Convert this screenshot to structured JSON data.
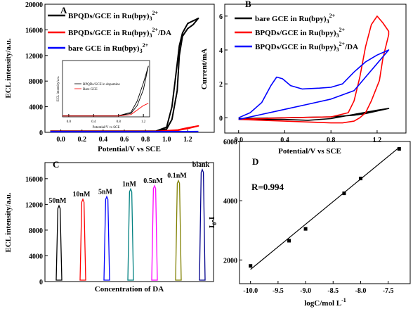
{
  "chart_data": [
    {
      "panel": "A",
      "type": "line",
      "xlabel": "Potential/V vs SCE",
      "ylabel": "ECL intensity/a.u.",
      "xlim": [
        -0.15,
        1.45
      ],
      "ylim": [
        0,
        20000
      ],
      "xticks": [
        "0.0",
        "0.2",
        "0.4",
        "0.6",
        "0.8",
        "1.0",
        "1.2"
      ],
      "xtick_values": [
        0.0,
        0.2,
        0.4,
        0.6,
        0.8,
        1.0,
        1.2
      ],
      "yticks": [
        "0",
        "4000",
        "8000",
        "12000",
        "16000",
        "20000"
      ],
      "ytick_values": [
        0,
        4000,
        8000,
        12000,
        16000,
        20000
      ],
      "legend_position": "top-left",
      "series": [
        {
          "name": "BPQDs/GCE in Ru(bpy)3 2+",
          "color": "#000000",
          "x": [
            -0.1,
            0.5,
            0.9,
            1.0,
            1.05,
            1.08,
            1.12,
            1.15,
            1.2,
            1.3,
            1.3,
            1.25,
            1.2,
            1.15,
            1.12,
            1.1,
            1.05,
            1.0,
            0.9,
            0.5,
            -0.1
          ],
          "y": [
            200,
            200,
            200,
            800,
            4000,
            8000,
            13500,
            15500,
            17000,
            17800,
            17800,
            16800,
            16200,
            15000,
            12000,
            6500,
            2000,
            500,
            200,
            200,
            200
          ]
        },
        {
          "name": "BPQDs/GCE in Ru(bpy)3 2+/DA",
          "color": "#ff0000",
          "x": [
            -0.1,
            0.5,
            0.9,
            1.1,
            1.2,
            1.3,
            1.3,
            1.2,
            1.1,
            0.9,
            0.5,
            -0.1
          ],
          "y": [
            150,
            150,
            150,
            300,
            600,
            1000,
            1000,
            700,
            350,
            150,
            150,
            150
          ]
        },
        {
          "name": "bare GCE in Ru(bpy)3 2+",
          "color": "#0000ff",
          "x": [
            -0.1,
            0.5,
            1.0,
            1.2,
            1.3
          ],
          "y": [
            100,
            100,
            100,
            110,
            120
          ]
        }
      ]
    },
    {
      "panel": "A-inset",
      "type": "line",
      "xlabel": "Potential/V vs SCE",
      "ylabel": "ECL intensity/a.u.",
      "xlim": [
        -0.1,
        1.3
      ],
      "ylim": [
        0,
        1000
      ],
      "xticks": [
        "0.0",
        "0.4",
        "0.8",
        "1.2"
      ],
      "xtick_values": [
        0.0,
        0.4,
        0.8,
        1.2
      ],
      "series": [
        {
          "name": "BPQDs/GCE in dopamine",
          "color": "#000000",
          "x": [
            -0.1,
            0.8,
            1.0,
            1.1,
            1.2,
            1.28,
            1.28,
            1.2,
            1.1,
            1.0,
            0.8,
            -0.1
          ],
          "y": [
            20,
            20,
            60,
            200,
            480,
            900,
            900,
            600,
            280,
            80,
            20,
            20
          ]
        },
        {
          "name": "Bare GCE",
          "color": "#ff0000",
          "x": [
            -0.1,
            0.8,
            1.0,
            1.1,
            1.2,
            1.28
          ],
          "y": [
            15,
            15,
            40,
            120,
            200,
            240
          ]
        }
      ]
    },
    {
      "panel": "B",
      "type": "line",
      "xlabel": "Potential/V vs SCE",
      "ylabel": "Current/mA",
      "xlim": [
        -0.12,
        1.45
      ],
      "ylim": [
        -0.9,
        6.7
      ],
      "xticks": [
        "0.0",
        "0.4",
        "0.8",
        "1.2"
      ],
      "xtick_values": [
        0.0,
        0.4,
        0.8,
        1.2
      ],
      "yticks": [
        "0",
        "2",
        "4",
        "6"
      ],
      "ytick_values": [
        0,
        2,
        4,
        6
      ],
      "legend_position": "top-left",
      "series": [
        {
          "name": "bare GCE in Ru(bpy)3 2+",
          "color": "#000000",
          "x": [
            0.0,
            0.4,
            0.8,
            1.0,
            1.1,
            1.2,
            1.3,
            1.3,
            1.2,
            1.0,
            0.8,
            0.6,
            0.4,
            0.2,
            0.0
          ],
          "y": [
            -0.05,
            0.0,
            0.05,
            0.15,
            0.25,
            0.4,
            0.55,
            0.55,
            0.45,
            0.2,
            -0.05,
            -0.15,
            -0.1,
            -0.1,
            -0.05
          ]
        },
        {
          "name": "BPQDs/GCE in Ru(bpy)3 2+",
          "color": "#ff0000",
          "x": [
            0.0,
            0.4,
            0.8,
            0.95,
            1.0,
            1.05,
            1.1,
            1.15,
            1.2,
            1.25,
            1.3,
            1.3,
            1.25,
            1.22,
            1.15,
            1.1,
            1.05,
            1.0,
            0.9,
            0.8,
            0.4,
            0.0
          ],
          "y": [
            -0.1,
            0.0,
            0.05,
            0.3,
            1.0,
            2.4,
            4.2,
            5.5,
            6.0,
            5.6,
            5.1,
            4.9,
            3.5,
            2.2,
            1.0,
            0.3,
            0.0,
            -0.2,
            -0.3,
            -0.3,
            -0.2,
            -0.1
          ]
        },
        {
          "name": "BPQDs/GCE in Ru(bpy)3 2+/DA",
          "color": "#0000ff",
          "x": [
            0.0,
            0.1,
            0.2,
            0.28,
            0.33,
            0.38,
            0.45,
            0.55,
            0.7,
            0.8,
            0.9,
            1.0,
            1.1,
            1.2,
            1.3,
            1.3,
            1.2,
            1.1,
            1.0,
            0.8,
            0.6,
            0.4,
            0.2,
            0.0
          ],
          "y": [
            0.0,
            0.3,
            0.9,
            1.9,
            2.4,
            2.3,
            1.9,
            1.7,
            1.75,
            1.8,
            2.0,
            2.7,
            3.3,
            3.7,
            4.0,
            4.0,
            3.2,
            2.4,
            1.6,
            1.1,
            0.8,
            0.5,
            0.2,
            -0.1
          ]
        }
      ]
    },
    {
      "panel": "C",
      "type": "line",
      "xlabel": "Concentration of DA",
      "ylabel": "ECL intensity/a.u.",
      "ylim": [
        0,
        18500
      ],
      "yticks": [
        "0",
        "4000",
        "8000",
        "12000",
        "16000"
      ],
      "ytick_values": [
        0,
        4000,
        8000,
        12000,
        16000
      ],
      "peaks": [
        {
          "label": "50nM",
          "value": 11800,
          "color": "#000000"
        },
        {
          "label": "10nM",
          "value": 12800,
          "color": "#ff0000"
        },
        {
          "label": "5nM",
          "value": 13200,
          "color": "#0000ff"
        },
        {
          "label": "1nM",
          "value": 14400,
          "color": "#008080"
        },
        {
          "label": "0.5nM",
          "value": 14900,
          "color": "#ff00ff"
        },
        {
          "label": "0.1nM",
          "value": 15700,
          "color": "#808000"
        },
        {
          "label": "blank",
          "value": 17400,
          "color": "#00008b"
        }
      ]
    },
    {
      "panel": "D",
      "type": "scatter",
      "xlabel": "logC/mol L",
      "xlabel_sup": "-1",
      "ylabel": "I",
      "ylabel_sub": "0",
      "ylabel_suffix": "-I",
      "xlim": [
        -10.2,
        -7.1
      ],
      "ylim": [
        1200,
        6000
      ],
      "xticks": [
        "-10.0",
        "-9.5",
        "-9.0",
        "-8.5",
        "-8.0",
        "-7.5"
      ],
      "xtick_values": [
        -10.0,
        -9.5,
        -9.0,
        -8.5,
        -8.0,
        -7.5
      ],
      "yticks": [
        "2000",
        "4000",
        "6000"
      ],
      "ytick_values": [
        2000,
        4000,
        6000
      ],
      "annotation": "R=0.994",
      "x": [
        -10.0,
        -9.3,
        -9.0,
        -8.3,
        -8.0,
        -7.3
      ],
      "y": [
        1800,
        2650,
        3050,
        4250,
        4750,
        5750
      ],
      "fit": {
        "x": [
          -10.0,
          -7.3
        ],
        "y": [
          1680,
          5800
        ]
      }
    }
  ],
  "text": {
    "panel_a": "A",
    "panel_b": "B",
    "panel_c": "C",
    "panel_d": "D",
    "a_leg1": "BPQDs/GCE in Ru(bpy)",
    "a_leg2": "BPQDs/GCE in Ru(bpy)",
    "a_leg2_tail": "/DA",
    "a_leg3": "bare GCE in Ru(bpy)",
    "b_leg1": "bare GCE in Ru(bpy)",
    "b_leg2": "BPQDs/GCE in Ru(bpy)",
    "b_leg3": "BPQDs/GCE in Ru(bpy)",
    "b_leg3_tail": "/DA",
    "sub3": "3",
    "sup2": "2+",
    "inset_leg1": "BPQDs/GCE in dopamine",
    "inset_leg2": "Bare GCE"
  }
}
